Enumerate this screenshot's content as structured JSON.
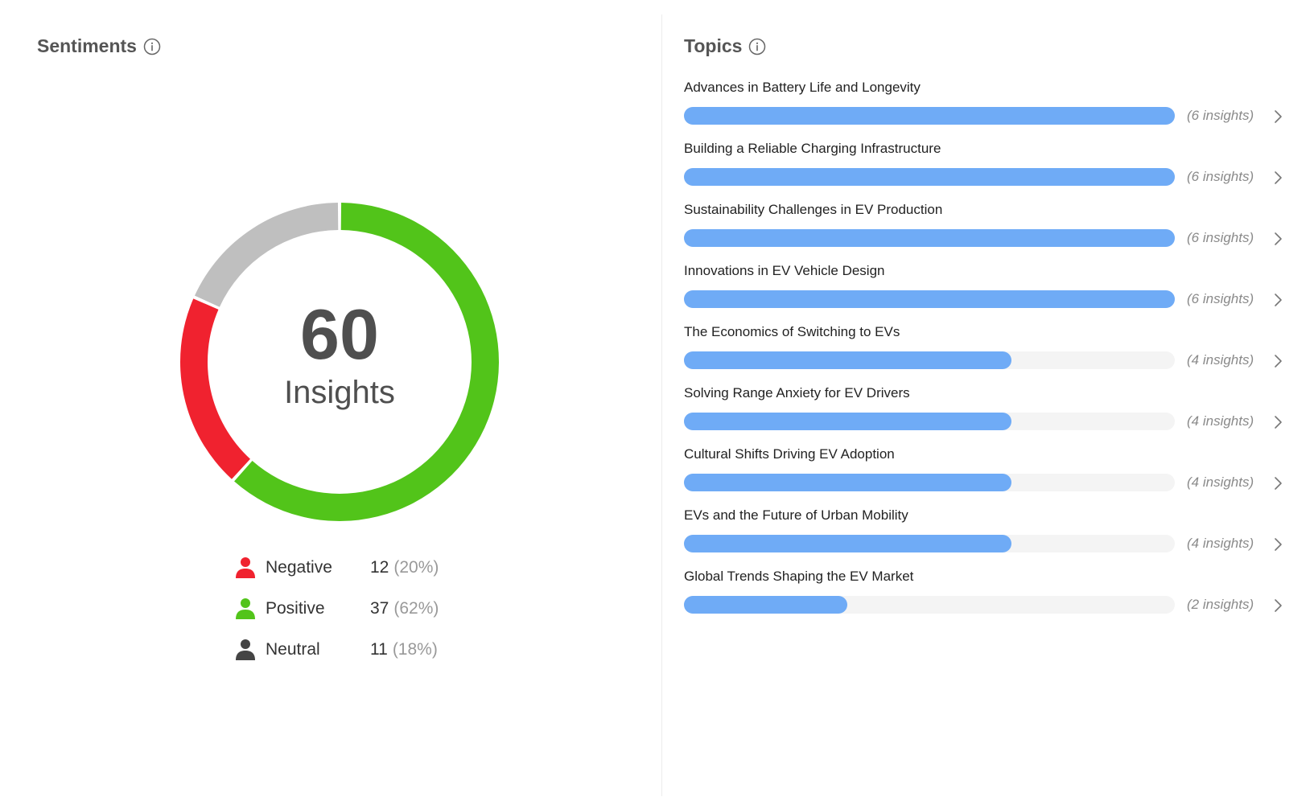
{
  "sentiments": {
    "title": "Sentiments",
    "total": "60",
    "total_label": "Insights",
    "items": [
      {
        "key": "negative",
        "label": "Negative",
        "count": "12",
        "percent": "(20%)",
        "value": 12,
        "color": "#f0222f"
      },
      {
        "key": "positive",
        "label": "Positive",
        "count": "37",
        "percent": "(62%)",
        "value": 37,
        "color": "#52c41a"
      },
      {
        "key": "neutral",
        "label": "Neutral",
        "count": "11",
        "percent": "(18%)",
        "value": 11,
        "color": "#bfbfbf"
      }
    ],
    "legend_icon_colors": {
      "negative": "#f0222f",
      "positive": "#52c41a",
      "neutral": "#444444"
    }
  },
  "topics": {
    "title": "Topics",
    "max_insights": 6,
    "bar_color": "#6fabf6",
    "items": [
      {
        "title": "Advances in Battery Life and Longevity",
        "insights": 6,
        "insights_label": "(6 insights)"
      },
      {
        "title": "Building a Reliable Charging Infrastructure",
        "insights": 6,
        "insights_label": "(6 insights)"
      },
      {
        "title": "Sustainability Challenges in EV Production",
        "insights": 6,
        "insights_label": "(6 insights)"
      },
      {
        "title": "Innovations in EV Vehicle Design",
        "insights": 6,
        "insights_label": "(6 insights)"
      },
      {
        "title": "The Economics of Switching to EVs",
        "insights": 4,
        "insights_label": "(4 insights)"
      },
      {
        "title": "Solving Range Anxiety for EV Drivers",
        "insights": 4,
        "insights_label": "(4 insights)"
      },
      {
        "title": "Cultural Shifts Driving EV Adoption",
        "insights": 4,
        "insights_label": "(4 insights)"
      },
      {
        "title": "EVs and the Future of Urban Mobility",
        "insights": 4,
        "insights_label": "(4 insights)"
      },
      {
        "title": "Global Trends Shaping the EV Market",
        "insights": 2,
        "insights_label": "(2 insights)"
      }
    ]
  },
  "icons": {
    "info": "info-circle-icon",
    "person": "person-icon",
    "chevron": "chevron-right-icon"
  }
}
